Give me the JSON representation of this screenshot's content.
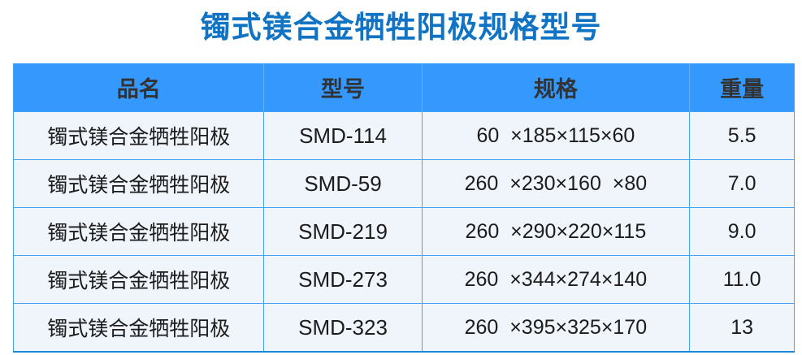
{
  "title": "镯式镁合金牺牲阳极规格型号",
  "colors": {
    "title_blue": "#1173c4",
    "header_bg": "#3598fd",
    "header_text": "#333333",
    "grid_line": "#44a3f5",
    "bottom_border": "#1e88d8",
    "row_bg": "#f0f4fb"
  },
  "table": {
    "columns": [
      "品名",
      "型号",
      "规格",
      "重量"
    ],
    "rows": [
      {
        "name": "镯式镁合金牺牲阳极",
        "model": "SMD-114",
        "spec": "60  ×185×115×60",
        "weight": "5.5"
      },
      {
        "name": "镯式镁合金牺牲阳极",
        "model": "SMD-59",
        "spec": "260  ×230×160  ×80",
        "weight": "7.0"
      },
      {
        "name": "镯式镁合金牺牲阳极",
        "model": "SMD-219",
        "spec": "260  ×290×220×115",
        "weight": "9.0"
      },
      {
        "name": "镯式镁合金牺牲阳极",
        "model": "SMD-273",
        "spec": "260  ×344×274×140",
        "weight": "11.0"
      },
      {
        "name": "镯式镁合金牺牲阳极",
        "model": "SMD-323",
        "spec": "260  ×395×325×170",
        "weight": "13"
      }
    ]
  }
}
